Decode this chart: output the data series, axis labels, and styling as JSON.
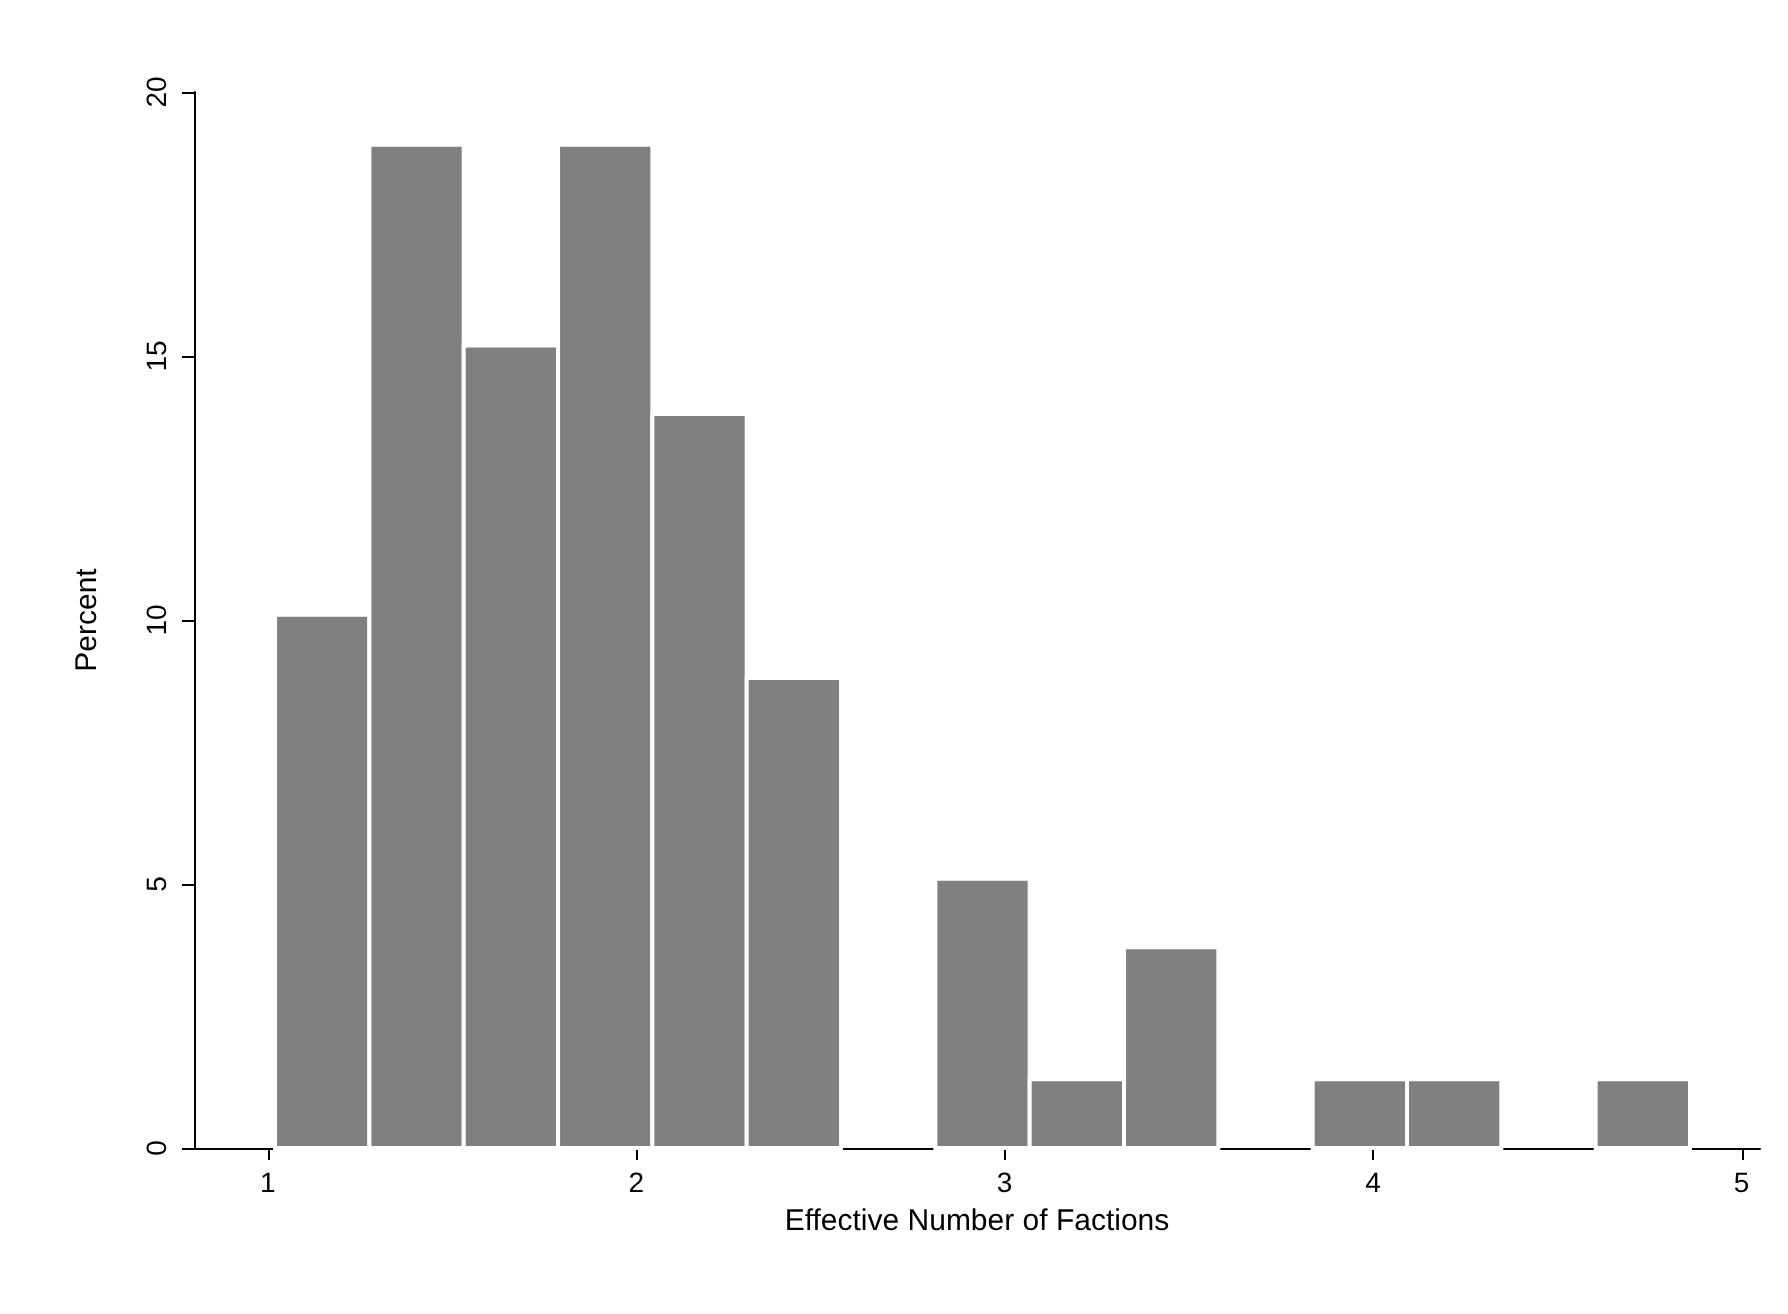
{
  "chart_data": {
    "type": "histogram",
    "xlabel": "Effective Number of Factions",
    "ylabel": "Percent",
    "bins": [
      1.02,
      1.276,
      1.532,
      1.788,
      2.044,
      2.3,
      2.556,
      2.812,
      3.068,
      3.324,
      3.58,
      3.836,
      4.092,
      4.348,
      4.604,
      4.86
    ],
    "values": [
      10.1,
      19,
      15.2,
      19,
      13.9,
      8.9,
      0,
      5.1,
      1.3,
      3.8,
      0,
      1.3,
      1.3,
      0,
      1.3
    ],
    "color": "#808080",
    "xlim": [
      0.8,
      5.05
    ],
    "xticks": [
      1,
      2,
      3,
      4,
      5
    ],
    "ylim": [
      0,
      20
    ],
    "yticks": [
      0,
      5,
      10,
      15,
      20
    ],
    "grid": false
  }
}
